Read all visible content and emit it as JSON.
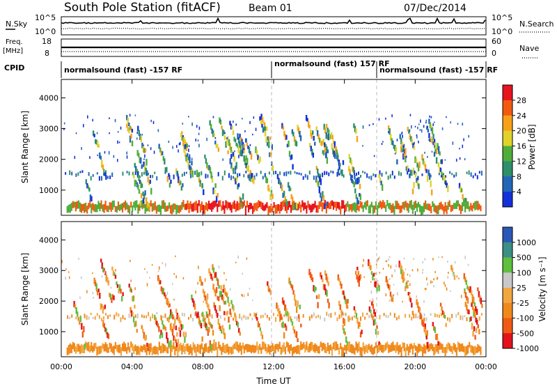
{
  "header": {
    "title": "South Pole Station (fitACF)",
    "beam": "Beam 01",
    "date": "07/Dec/2014"
  },
  "top_panels": {
    "nsky_label": "N.Sky",
    "nsky_ticks": [
      "10^5",
      "10^0"
    ],
    "nsearch_label": "N.Search",
    "nsearch_ticks": [
      "10^5",
      "10^0"
    ],
    "freq_label_line1": "Freq.",
    "freq_label_line2": "[MHz]",
    "freq_ticks": [
      "18",
      "8"
    ],
    "nave_label": "Nave",
    "nave_ticks": [
      "60",
      "0"
    ],
    "cpid_label": "CPID",
    "cpid_segments": [
      "normalsound (fast) -157 RF",
      "normalsound (fast) 157 RF",
      "normalsound (fast) -157 RF"
    ]
  },
  "chart_data": [
    {
      "type": "heatmap",
      "name": "power",
      "ylabel": "Slant Range [km]",
      "yticks": [
        1000,
        2000,
        3000,
        4000
      ],
      "ylim": [
        180,
        4600
      ],
      "xlim": [
        0,
        24
      ],
      "colorbar_label": "Power [dB]",
      "colorbar_ticks": [
        "28",
        "24",
        "20",
        "16",
        "12",
        "8",
        "4"
      ],
      "colorbar_colors": [
        "#e8141e",
        "#f25a10",
        "#f7a01a",
        "#e0d22a",
        "#4fae3a",
        "#2e8f6a",
        "#2266b8",
        "#1431d9"
      ]
    },
    {
      "type": "heatmap",
      "name": "velocity",
      "ylabel": "Slant Range [km]",
      "yticks": [
        1000,
        2000,
        3000,
        4000
      ],
      "ylim": [
        180,
        4600
      ],
      "xlim": [
        0,
        24
      ],
      "colorbar_label": "Velocity [m s⁻¹]",
      "colorbar_ticks": [
        "1000",
        "500",
        "100",
        "25",
        "-25",
        "-100",
        "-500",
        "-1000"
      ],
      "colorbar_colors": [
        "#2b58b6",
        "#3b8f84",
        "#5fbf3f",
        "#c8c8c8",
        "#f2a640",
        "#f0891c",
        "#f05a14",
        "#e3121b"
      ]
    }
  ],
  "x_axis": {
    "ticks": [
      "00:00",
      "04:00",
      "08:00",
      "12:00",
      "16:00",
      "20:00",
      "00:00"
    ],
    "label": "Time UT"
  }
}
